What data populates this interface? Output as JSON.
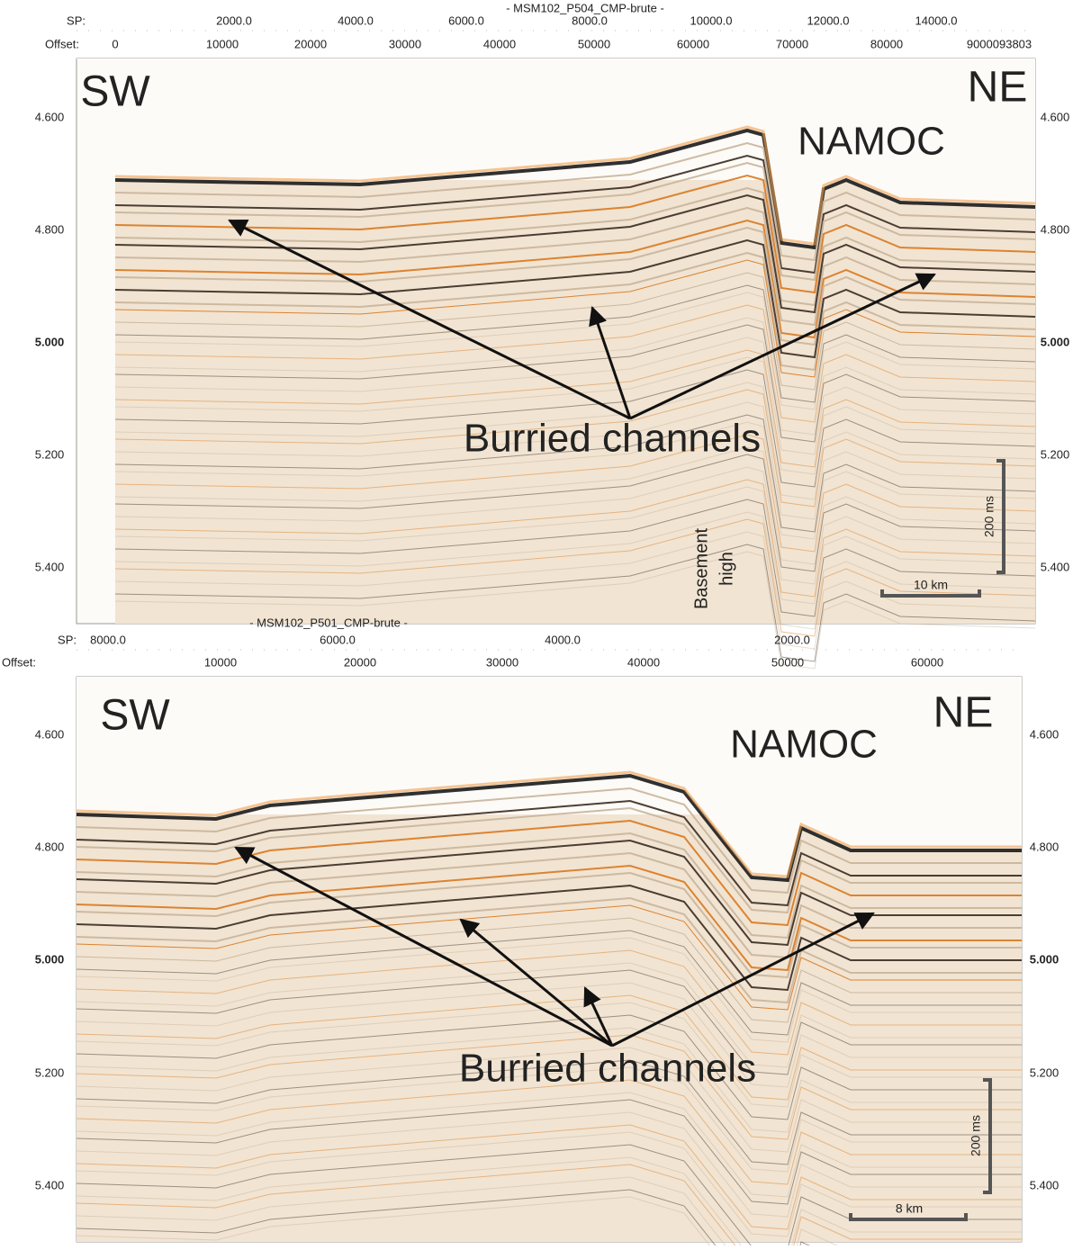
{
  "panels": [
    {
      "title": "- MSM102_P504_CMP-brute -",
      "sp_label": "SP:",
      "sp_ticks": [
        "2000.0",
        "4000.0",
        "6000.0",
        "8000.0",
        "10000.0",
        "12000.0",
        "14000.0"
      ],
      "offset_label": "Offset:",
      "offset_ticks": [
        "0",
        "10000",
        "20000",
        "30000",
        "40000",
        "50000",
        "60000",
        "70000",
        "80000",
        "9000093803"
      ],
      "time_ticks": [
        "4.600",
        "4.800",
        "5.000",
        "5.200",
        "5.400"
      ],
      "left": "SW",
      "right": "NE",
      "feature": "NAMOC",
      "annotation": "Burried channels",
      "basement": [
        "Basement",
        "high"
      ],
      "scale_time": "200 ms",
      "scale_distance": "10 km"
    },
    {
      "title": "- MSM102_P501_CMP-brute -",
      "sp_label": "SP:",
      "sp_ticks": [
        "8000.0",
        "6000.0",
        "4000.0",
        "2000.0"
      ],
      "offset_label": "Offset:",
      "offset_ticks": [
        "10000",
        "20000",
        "30000",
        "40000",
        "50000",
        "60000"
      ],
      "time_ticks": [
        "4.600",
        "4.800",
        "5.000",
        "5.200",
        "5.400"
      ],
      "left": "SW",
      "right": "NE",
      "feature": "NAMOC",
      "annotation": "Burried channels",
      "scale_time": "200 ms",
      "scale_distance": "8 km"
    }
  ]
}
